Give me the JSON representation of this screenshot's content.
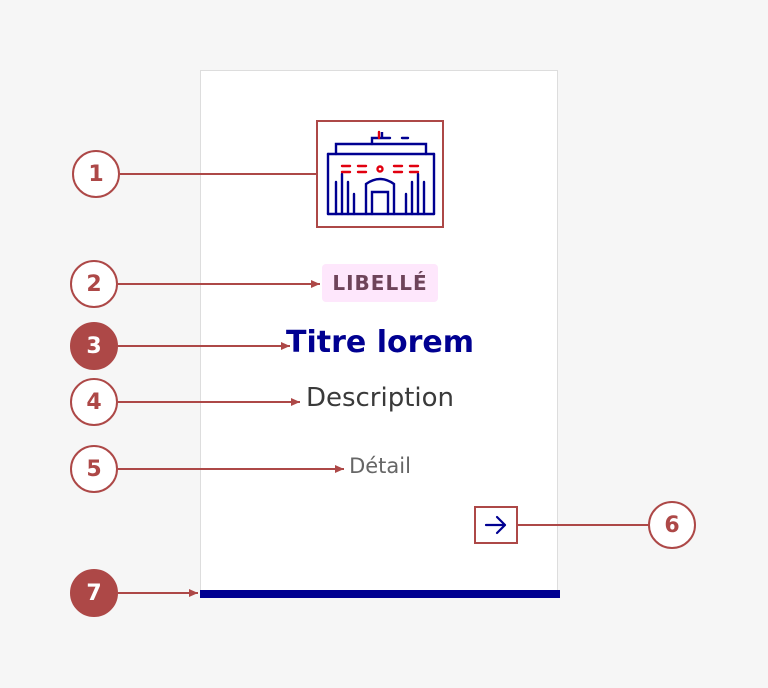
{
  "card": {
    "badge_label": "LIBELLÉ",
    "title": "Titre lorem",
    "description": "Description",
    "detail": "Détail",
    "icon": "building-pictogram-icon",
    "arrow_icon": "arrow-right-icon"
  },
  "callouts": [
    {
      "number": "1",
      "style": "outline"
    },
    {
      "number": "2",
      "style": "outline"
    },
    {
      "number": "3",
      "style": "filled"
    },
    {
      "number": "4",
      "style": "outline"
    },
    {
      "number": "5",
      "style": "outline"
    },
    {
      "number": "6",
      "style": "outline"
    },
    {
      "number": "7",
      "style": "filled"
    }
  ],
  "colors": {
    "annotation": "#ad4847",
    "primary_blue": "#000091",
    "badge_background": "#fee7fc",
    "badge_text": "#6e445a",
    "accent_red": "#e1000f"
  }
}
